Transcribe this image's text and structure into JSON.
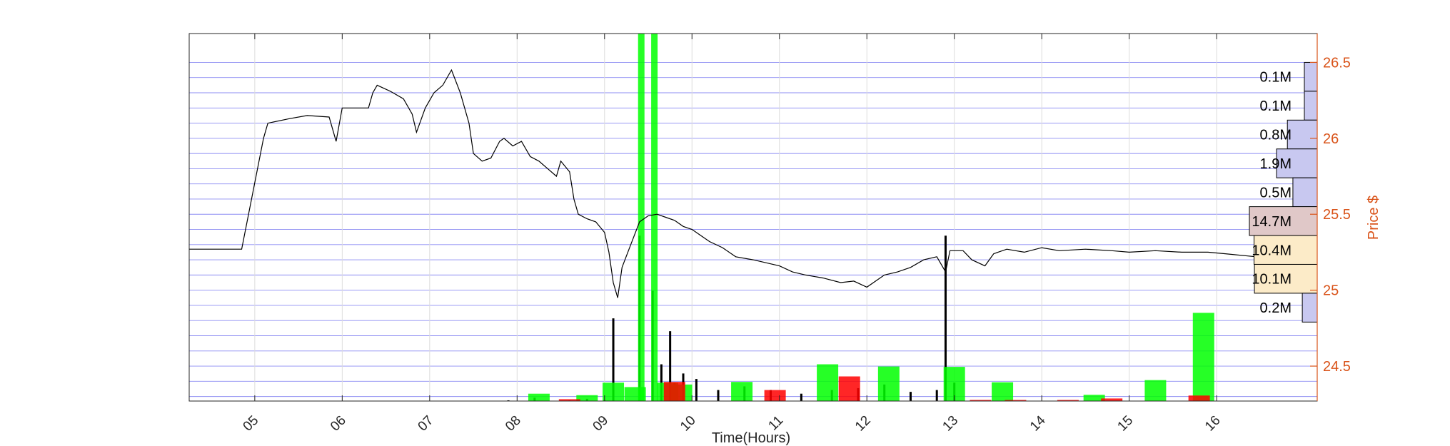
{
  "chart_data": {
    "type": "line",
    "xlabel": "Time(Hours)",
    "ylabel": "Price $",
    "x_ticks": [
      "05",
      "06",
      "07",
      "08",
      "09",
      "10",
      "11",
      "12",
      "13",
      "14",
      "15",
      "16"
    ],
    "xlim": [
      4.25,
      17.15
    ],
    "y_ticks": [
      24.5,
      25,
      25.5,
      26,
      26.5
    ],
    "y_tick_labels": [
      "24.5",
      "25",
      "25.5",
      "26",
      "26.5"
    ],
    "ylim": [
      24.27,
      26.69
    ],
    "grid": true,
    "price_series": {
      "color": "#000000",
      "points": [
        [
          4.25,
          25.27
        ],
        [
          4.5,
          25.27
        ],
        [
          4.85,
          25.27
        ],
        [
          5.1,
          26.0
        ],
        [
          5.15,
          26.1
        ],
        [
          5.4,
          26.13
        ],
        [
          5.6,
          26.15
        ],
        [
          5.85,
          26.14
        ],
        [
          5.93,
          25.98
        ],
        [
          6.0,
          26.2
        ],
        [
          6.3,
          26.2
        ],
        [
          6.35,
          26.3
        ],
        [
          6.4,
          26.35
        ],
        [
          6.55,
          26.31
        ],
        [
          6.7,
          26.26
        ],
        [
          6.8,
          26.16
        ],
        [
          6.85,
          26.04
        ],
        [
          6.95,
          26.2
        ],
        [
          7.05,
          26.3
        ],
        [
          7.15,
          26.35
        ],
        [
          7.25,
          26.45
        ],
        [
          7.35,
          26.3
        ],
        [
          7.45,
          26.1
        ],
        [
          7.5,
          25.9
        ],
        [
          7.6,
          25.85
        ],
        [
          7.7,
          25.87
        ],
        [
          7.8,
          25.98
        ],
        [
          7.85,
          26.0
        ],
        [
          7.95,
          25.95
        ],
        [
          8.05,
          25.98
        ],
        [
          8.15,
          25.88
        ],
        [
          8.25,
          25.85
        ],
        [
          8.35,
          25.8
        ],
        [
          8.45,
          25.75
        ],
        [
          8.5,
          25.85
        ],
        [
          8.6,
          25.78
        ],
        [
          8.65,
          25.6
        ],
        [
          8.7,
          25.5
        ],
        [
          8.8,
          25.47
        ],
        [
          8.9,
          25.45
        ],
        [
          9.0,
          25.38
        ],
        [
          9.05,
          25.25
        ],
        [
          9.1,
          25.05
        ],
        [
          9.15,
          24.95
        ],
        [
          9.2,
          25.15
        ],
        [
          9.3,
          25.3
        ],
        [
          9.4,
          25.45
        ],
        [
          9.5,
          25.49
        ],
        [
          9.6,
          25.5
        ],
        [
          9.7,
          25.48
        ],
        [
          9.8,
          25.46
        ],
        [
          9.9,
          25.42
        ],
        [
          10.0,
          25.4
        ],
        [
          10.1,
          25.36
        ],
        [
          10.2,
          25.32
        ],
        [
          10.35,
          25.28
        ],
        [
          10.5,
          25.22
        ],
        [
          10.7,
          25.2
        ],
        [
          10.85,
          25.18
        ],
        [
          11.0,
          25.16
        ],
        [
          11.15,
          25.12
        ],
        [
          11.3,
          25.1
        ],
        [
          11.5,
          25.08
        ],
        [
          11.7,
          25.05
        ],
        [
          11.85,
          25.06
        ],
        [
          12.0,
          25.02
        ],
        [
          12.1,
          25.06
        ],
        [
          12.2,
          25.1
        ],
        [
          12.35,
          25.12
        ],
        [
          12.5,
          25.15
        ],
        [
          12.65,
          25.2
        ],
        [
          12.8,
          25.22
        ],
        [
          12.9,
          25.12
        ],
        [
          12.95,
          25.26
        ],
        [
          13.1,
          25.26
        ],
        [
          13.2,
          25.2
        ],
        [
          13.35,
          25.16
        ],
        [
          13.45,
          25.24
        ],
        [
          13.6,
          25.27
        ],
        [
          13.8,
          25.25
        ],
        [
          14.0,
          25.28
        ],
        [
          14.2,
          25.26
        ],
        [
          14.5,
          25.27
        ],
        [
          14.8,
          25.26
        ],
        [
          15.0,
          25.25
        ],
        [
          15.3,
          25.26
        ],
        [
          15.6,
          25.25
        ],
        [
          15.9,
          25.25
        ],
        [
          16.1,
          25.24
        ],
        [
          16.45,
          25.22
        ]
      ]
    },
    "volume_bars": {
      "points": [
        [
          7.9,
          0.004
        ],
        [
          8.2,
          0.018
        ],
        [
          8.6,
          0.003
        ],
        [
          8.8,
          0.012
        ],
        [
          9.0,
          0.005
        ],
        [
          9.1,
          0.45
        ],
        [
          9.4,
          0.9
        ],
        [
          9.55,
          0.6
        ],
        [
          9.65,
          0.2
        ],
        [
          9.75,
          0.38
        ],
        [
          9.8,
          0.1
        ],
        [
          9.9,
          0.15
        ],
        [
          10.05,
          0.12
        ],
        [
          10.3,
          0.06
        ],
        [
          10.6,
          0.08
        ],
        [
          10.9,
          0.06
        ],
        [
          11.25,
          0.04
        ],
        [
          11.6,
          0.06
        ],
        [
          11.9,
          0.07
        ],
        [
          12.2,
          0.09
        ],
        [
          12.5,
          0.05
        ],
        [
          12.8,
          0.06
        ],
        [
          12.9,
          0.9
        ],
        [
          13.0,
          0.1
        ]
      ]
    },
    "buy_bars": {
      "color": "#00FF00",
      "points": [
        [
          8.25,
          0.02
        ],
        [
          8.8,
          0.016
        ],
        [
          9.1,
          0.05
        ],
        [
          9.35,
          0.038
        ],
        [
          9.42,
          1.0
        ],
        [
          9.57,
          1.0
        ],
        [
          9.72,
          0.05
        ],
        [
          9.88,
          0.045
        ],
        [
          10.57,
          0.052
        ],
        [
          11.55,
          0.1
        ],
        [
          12.25,
          0.094
        ],
        [
          13.0,
          0.093
        ],
        [
          13.55,
          0.051
        ],
        [
          14.0,
          0.0005
        ],
        [
          14.6,
          0.017
        ],
        [
          15.3,
          0.057
        ],
        [
          15.85,
          0.24
        ]
      ]
    },
    "sell_bars": {
      "color": "#FF0000",
      "points": [
        [
          8.6,
          0.005
        ],
        [
          9.8,
          0.052
        ],
        [
          10.95,
          0.03
        ],
        [
          11.8,
          0.067
        ],
        [
          13.3,
          0.003
        ],
        [
          13.7,
          0.0005
        ],
        [
          14.3,
          0.0005
        ],
        [
          14.8,
          0.007
        ],
        [
          15.8,
          0.015
        ]
      ]
    },
    "volume_profile": [
      {
        "label": "0.1M",
        "price_low": 26.31,
        "price_high": 26.5,
        "value": 0.1,
        "color": "#C8C8F0"
      },
      {
        "label": "0.1M",
        "price_low": 26.12,
        "price_high": 26.31,
        "value": 0.1,
        "color": "#C8C8F0"
      },
      {
        "label": "0.8M",
        "price_low": 25.93,
        "price_high": 26.12,
        "value": 0.8,
        "color": "#C8C8F0"
      },
      {
        "label": "1.9M",
        "price_low": 25.74,
        "price_high": 25.93,
        "value": 1.9,
        "color": "#C8C8F0"
      },
      {
        "label": "0.5M",
        "price_low": 25.55,
        "price_high": 25.74,
        "value": 0.5,
        "color": "#C8C8F0"
      },
      {
        "label": "14.7M",
        "price_low": 25.36,
        "price_high": 25.55,
        "value": 14.7,
        "color": "#E0C8C8"
      },
      {
        "label": "10.4M",
        "price_low": 25.17,
        "price_high": 25.36,
        "value": 10.4,
        "color": "#FCEBC8"
      },
      {
        "label": "10.1M",
        "price_low": 24.98,
        "price_high": 25.17,
        "value": 10.1,
        "color": "#FCEBC8"
      },
      {
        "label": "0.2M",
        "price_low": 24.79,
        "price_high": 24.98,
        "value": 0.2,
        "color": "#C8C8F0"
      }
    ]
  }
}
